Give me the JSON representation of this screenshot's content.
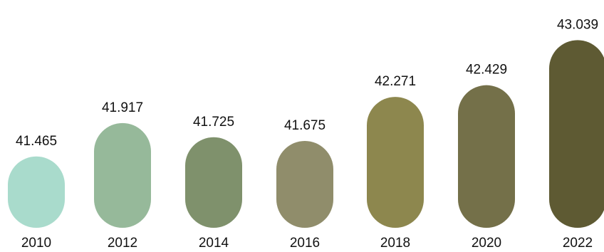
{
  "chart_data": {
    "type": "bar",
    "title": "",
    "xlabel": "",
    "ylabel": "",
    "categories": [
      "2010",
      "2012",
      "2014",
      "2016",
      "2018",
      "2020",
      "2022"
    ],
    "values": [
      41.465,
      41.917,
      41.725,
      41.675,
      42.271,
      42.429,
      43.039
    ],
    "value_labels": [
      "41.465",
      "41.917",
      "41.725",
      "41.675",
      "42.271",
      "42.429",
      "43.039"
    ],
    "colors": [
      "#a9dbcc",
      "#96b99a",
      "#7f916c",
      "#908d6b",
      "#8d874e",
      "#747049",
      "#5e5a33"
    ],
    "ylim": [
      40.5,
      43.1
    ],
    "grid": false,
    "legend": "none",
    "bar_shape": "rounded-capsule"
  }
}
